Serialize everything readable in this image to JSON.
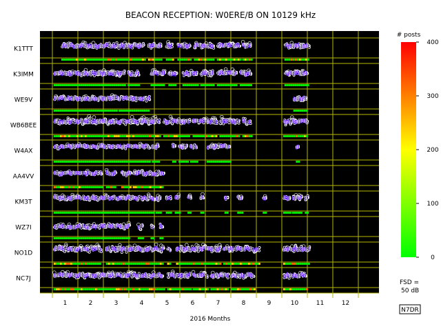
{
  "chart_data": {
    "type": "scatter",
    "title": "BEACON RECEPTION: W0ERE/B ON 10129 kHz",
    "xlabel": "2016 Months",
    "x_ticks": [
      "1",
      "2",
      "3",
      "4",
      "5",
      "6",
      "7",
      "8",
      "9",
      "10",
      "11",
      "12"
    ],
    "xlim": [
      0.5,
      12.5
    ],
    "colorbar": {
      "title": "# posts",
      "ticks": [
        "400",
        "300",
        "200",
        "100",
        "0"
      ],
      "range": [
        0,
        400
      ],
      "colors": [
        "#ff0000",
        "#ffff00",
        "#00ff00"
      ]
    },
    "fsd_label": "FSD =",
    "fsd_value": "50 dB",
    "credit": "N7DR",
    "background": "#000000",
    "grid_color": "#b8b800",
    "median_color": "#6a2cff",
    "point_color": "#ffffff",
    "series": [
      {
        "name": "K1TTT",
        "active": [
          [
            0.85,
            4.1
          ],
          [
            4.25,
            4.75
          ],
          [
            4.95,
            5.2
          ],
          [
            5.4,
            5.9
          ],
          [
            6.05,
            6.8
          ],
          [
            6.95,
            7.85
          ],
          [
            7.95,
            8.3
          ],
          [
            9.6,
            10.55
          ]
        ],
        "level": 0.55,
        "spread": 0.28,
        "color_band": true
      },
      {
        "name": "K3IMM",
        "active": [
          [
            0.55,
            3.35
          ],
          [
            3.45,
            3.9
          ],
          [
            4.35,
            4.9
          ],
          [
            5.05,
            5.35
          ],
          [
            5.6,
            6.2
          ],
          [
            6.3,
            6.8
          ],
          [
            6.95,
            7.7
          ],
          [
            7.85,
            8.3
          ],
          [
            9.6,
            10.5
          ]
        ],
        "level": 0.42,
        "spread": 0.3,
        "color_band": false
      },
      {
        "name": "WE9V",
        "active": [
          [
            0.55,
            3.05
          ],
          [
            3.1,
            4.3
          ],
          [
            9.95,
            10.45
          ]
        ],
        "level": 0.45,
        "spread": 0.25,
        "color_band": false
      },
      {
        "name": "WB6BEE",
        "active": [
          [
            0.55,
            4.7
          ],
          [
            4.85,
            5.9
          ],
          [
            6.0,
            6.95
          ],
          [
            7.05,
            7.85
          ],
          [
            7.95,
            8.3
          ],
          [
            9.55,
            10.5
          ]
        ],
        "level": 0.6,
        "spread": 0.35,
        "color_band": true
      },
      {
        "name": "W4AX",
        "active": [
          [
            0.55,
            4.3
          ],
          [
            4.4,
            4.65
          ],
          [
            5.2,
            5.35
          ],
          [
            5.45,
            5.8
          ],
          [
            5.9,
            6.15
          ],
          [
            6.55,
            7.45
          ],
          [
            10.05,
            10.15
          ]
        ],
        "level": 0.62,
        "spread": 0.18,
        "color_band": false
      },
      {
        "name": "AA4VV",
        "active": [
          [
            0.55,
            2.45
          ],
          [
            2.6,
            3.0
          ],
          [
            3.2,
            3.6
          ],
          [
            3.65,
            4.85
          ]
        ],
        "level": 0.55,
        "spread": 0.2,
        "color_band": true
      },
      {
        "name": "KM3T",
        "active": [
          [
            0.55,
            4.5
          ],
          [
            4.55,
            4.75
          ],
          [
            4.95,
            5.15
          ],
          [
            5.3,
            5.5
          ],
          [
            5.8,
            5.95
          ],
          [
            6.3,
            6.45
          ],
          [
            7.25,
            7.4
          ],
          [
            7.75,
            7.95
          ],
          [
            8.75,
            8.85
          ],
          [
            9.55,
            9.8
          ],
          [
            9.9,
            10.3
          ],
          [
            10.4,
            10.5
          ]
        ],
        "level": 0.6,
        "spread": 0.25,
        "color_band": false
      },
      {
        "name": "WZ7I",
        "active": [
          [
            0.55,
            3.55
          ],
          [
            3.85,
            4.05
          ],
          [
            4.35,
            4.5
          ],
          [
            4.7,
            4.85
          ]
        ],
        "level": 0.42,
        "spread": 0.28,
        "color_band": false
      },
      {
        "name": "NO1D",
        "active": [
          [
            0.55,
            2.4
          ],
          [
            2.6,
            4.85
          ],
          [
            5.0,
            5.15
          ],
          [
            5.35,
            7.1
          ],
          [
            7.2,
            8.6
          ],
          [
            9.55,
            10.55
          ]
        ],
        "level": 0.6,
        "spread": 0.35,
        "color_band": true
      },
      {
        "name": "NC7J",
        "active": [
          [
            0.55,
            4.85
          ],
          [
            5.0,
            5.9
          ],
          [
            6.0,
            6.6
          ],
          [
            6.7,
            7.4
          ],
          [
            7.5,
            8.4
          ],
          [
            9.55,
            10.45
          ]
        ],
        "level": 0.55,
        "spread": 0.3,
        "color_band": true
      }
    ]
  }
}
